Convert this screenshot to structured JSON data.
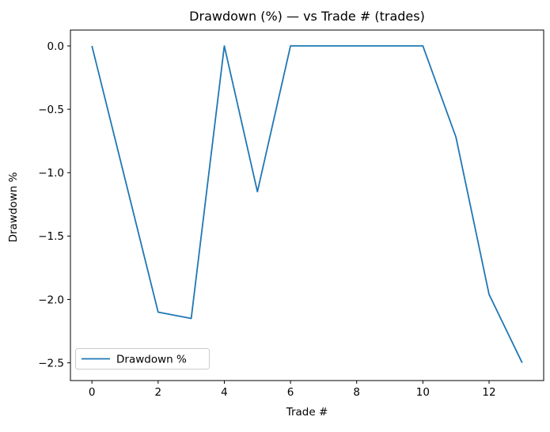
{
  "chart_data": {
    "type": "line",
    "title": "Drawdown (%) — vs Trade # (trades)",
    "xlabel": "Trade #",
    "ylabel": "Drawdown %",
    "x": [
      0,
      1,
      2,
      3,
      4,
      5,
      6,
      7,
      8,
      9,
      10,
      11,
      12,
      13
    ],
    "series": [
      {
        "name": "Drawdown %",
        "color": "#1f77b4",
        "values": [
          0.0,
          -1.05,
          -2.1,
          -2.15,
          0.0,
          -1.15,
          0.0,
          0.0,
          0.0,
          0.0,
          0.0,
          -0.72,
          -1.96,
          -2.5
        ]
      }
    ],
    "xlim": [
      -0.65,
      13.65
    ],
    "ylim": [
      -2.64,
      0.125
    ],
    "xticks": {
      "values": [
        0,
        2,
        4,
        6,
        8,
        10,
        12
      ],
      "labels": [
        "0",
        "2",
        "4",
        "6",
        "8",
        "10",
        "12"
      ]
    },
    "yticks": {
      "values": [
        0,
        -0.5,
        -1,
        -1.5,
        -2,
        -2.5
      ],
      "labels": [
        "0.0",
        "−0.5",
        "−1.0",
        "−1.5",
        "−2.0",
        "−2.5"
      ]
    },
    "legend": {
      "position": "lower left",
      "entries": [
        {
          "label": "Drawdown %",
          "color": "#1f77b4"
        }
      ]
    },
    "grid": false,
    "background": "#ffffff",
    "frame_color": "#000000"
  }
}
